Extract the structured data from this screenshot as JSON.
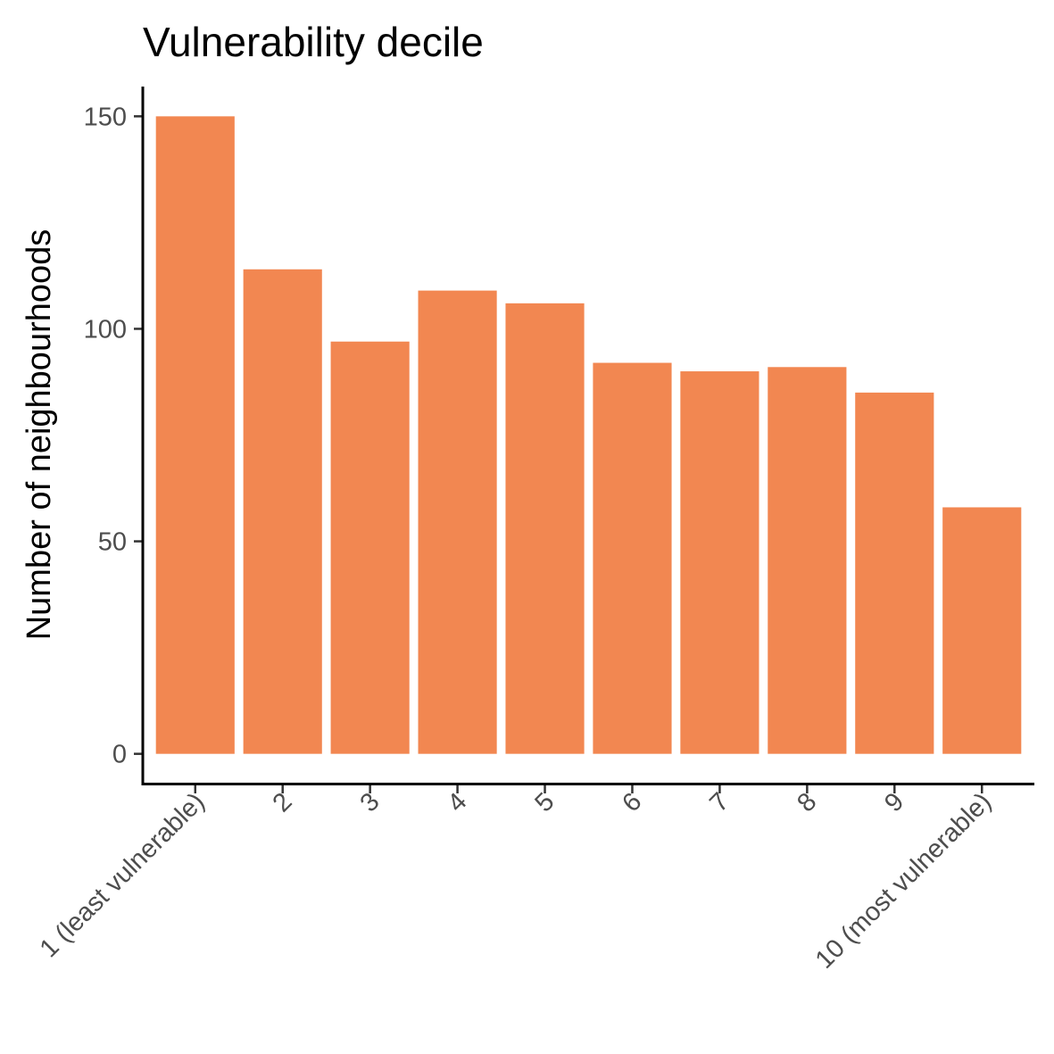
{
  "chart_data": {
    "type": "bar",
    "title": "Vulnerability decile",
    "xlabel": "",
    "ylabel": "Number of neighbourhoods",
    "categories": [
      "1 (least vulnerable)",
      "2",
      "3",
      "4",
      "5",
      "6",
      "7",
      "8",
      "9",
      "10 (most vulnerable)"
    ],
    "values": [
      150,
      114,
      97,
      109,
      106,
      92,
      90,
      91,
      85,
      58
    ],
    "yticks": [
      0,
      50,
      100,
      150
    ],
    "ylim": [
      -7,
      157
    ],
    "grid": false,
    "legend": "none",
    "bar_color": "#F28751"
  }
}
